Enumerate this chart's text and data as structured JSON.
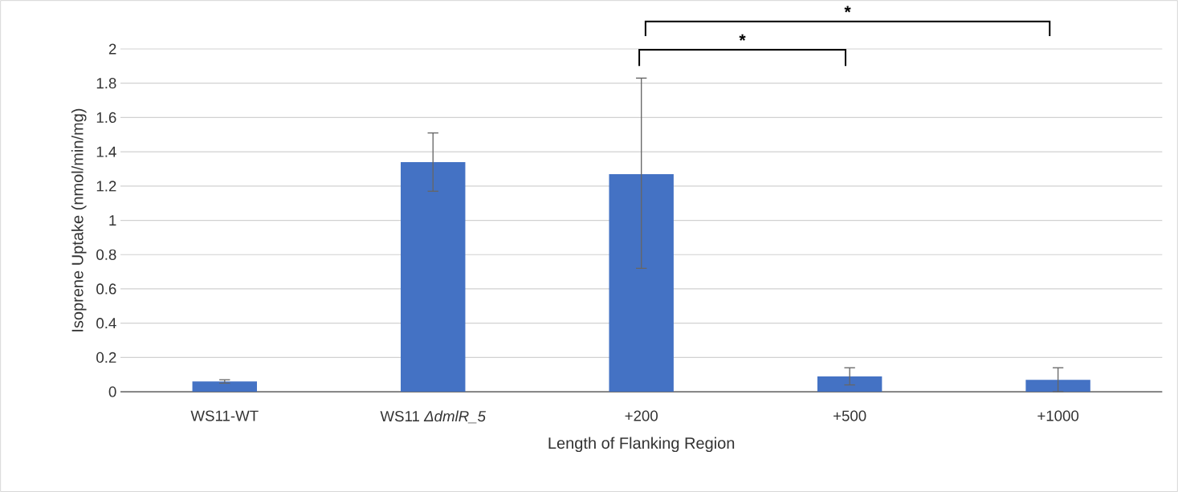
{
  "chart_data": {
    "type": "bar",
    "categories": [
      "WS11-WT",
      "WS11 *ΔdmlR_5*",
      "+200",
      "+500",
      "+1000"
    ],
    "values": [
      0.06,
      1.34,
      1.27,
      0.09,
      0.07
    ],
    "errors": [
      0.01,
      0.17,
      [
        0.72,
        1.83
      ],
      0.05,
      0.07
    ],
    "color": "#4472c4",
    "xlabel": "Length of Flanking Region",
    "ylabel": "Isoprene Uptake (nmol/min/mg)",
    "ylim": [
      0,
      2
    ],
    "yticks": [
      0,
      0.2,
      0.4,
      0.6,
      0.8,
      1,
      1.2,
      1.4,
      1.6,
      1.8,
      2
    ],
    "grid": "y",
    "annotations": [
      "*",
      "*"
    ]
  }
}
